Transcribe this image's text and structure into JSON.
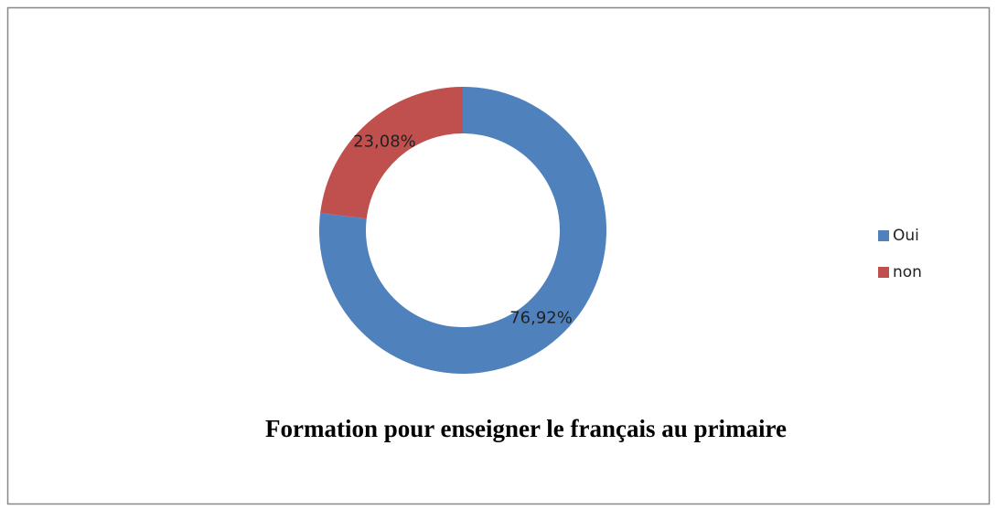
{
  "chart_data": {
    "type": "donut",
    "title": "Formation pour enseigner le français au primaire",
    "categories": [
      "Oui",
      "non"
    ],
    "values": [
      76.92,
      23.08
    ],
    "value_labels": [
      "76,92%",
      "23,08%"
    ],
    "colors": [
      "#4f81bd",
      "#c0504d"
    ],
    "legend": "right"
  }
}
